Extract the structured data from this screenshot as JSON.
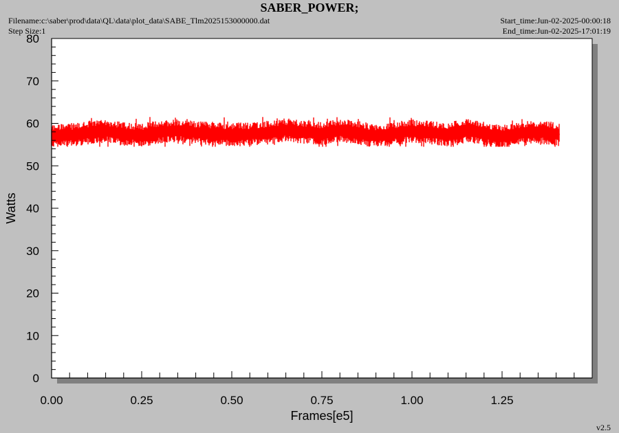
{
  "header": {
    "title": "SABER_POWER;",
    "filename": "Filename:c:\\saber\\prod\\data\\QL\\data\\plot_data\\SABE_Tlm2025153000000.dat",
    "step_size": "Step Size:1",
    "start_time": "Start_time:Jun-02-2025-00:00:18",
    "end_time": "End_time:Jun-02-2025-17:01:19"
  },
  "version": "v2.5",
  "colors": {
    "background": "#c0c0c0",
    "plot_area": "#ffffff",
    "shadow": "#808080",
    "series": "#ff0000",
    "axis": "#000000"
  },
  "chart_data": {
    "type": "line",
    "title": "SABER_POWER;",
    "xlabel": "Frames[e5]",
    "ylabel": "Watts",
    "xlim": [
      0.0,
      1.5
    ],
    "ylim": [
      0,
      80
    ],
    "x_ticks": [
      "0.00",
      "0.25",
      "0.50",
      "0.75",
      "1.00",
      "1.25"
    ],
    "y_ticks": [
      "0",
      "10",
      "20",
      "30",
      "40",
      "50",
      "60",
      "70",
      "80"
    ],
    "grid": false,
    "series": [
      {
        "name": "",
        "color": "#ff0000",
        "x": [
          0.0,
          0.05,
          0.1,
          0.15,
          0.2,
          0.25,
          0.3,
          0.35,
          0.4,
          0.45,
          0.5,
          0.55,
          0.6,
          0.65,
          0.7,
          0.75,
          0.8,
          0.85,
          0.9,
          0.95,
          1.0,
          1.05,
          1.1,
          1.15,
          1.2,
          1.25,
          1.3,
          1.35,
          1.41
        ],
        "y": [
          57.0,
          57.2,
          57.8,
          58.2,
          57.5,
          57.2,
          58.0,
          58.3,
          57.8,
          57.5,
          57.4,
          57.5,
          57.8,
          58.4,
          58.0,
          57.5,
          58.3,
          57.8,
          57.0,
          57.6,
          58.2,
          57.8,
          57.4,
          58.4,
          57.6,
          56.8,
          57.6,
          58.0,
          57.4
        ],
        "band_min": 54.5,
        "band_max": 61.5
      }
    ]
  }
}
